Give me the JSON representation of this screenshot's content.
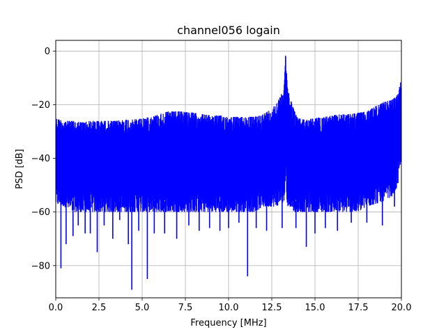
{
  "chart_data": {
    "type": "line",
    "title": "channel056 logain",
    "xlabel": "Frequency [MHz]",
    "ylabel": "PSD [dB]",
    "xlim": [
      0.0,
      20.0
    ],
    "ylim": [
      -92,
      4
    ],
    "xticks": [
      0.0,
      2.5,
      5.0,
      7.5,
      10.0,
      12.5,
      15.0,
      17.5,
      20.0
    ],
    "xtick_labels": [
      "0.0",
      "2.5",
      "5.0",
      "7.5",
      "10.0",
      "12.5",
      "15.0",
      "17.5",
      "20.0"
    ],
    "yticks": [
      0,
      -20,
      -40,
      -60,
      -80
    ],
    "ytick_labels": [
      "0",
      "−20",
      "−40",
      "−60",
      "−80"
    ],
    "grid": true,
    "legend": "none",
    "line_color": "#0000ff",
    "envelope": {
      "x": [
        0.0,
        0.5,
        1.0,
        1.5,
        2.0,
        2.5,
        3.0,
        3.5,
        4.0,
        4.5,
        5.0,
        5.5,
        6.0,
        6.5,
        7.0,
        7.5,
        8.0,
        8.5,
        9.0,
        9.5,
        10.0,
        10.5,
        11.0,
        11.5,
        12.0,
        12.5,
        12.8,
        13.0,
        13.2,
        13.3,
        13.4,
        13.6,
        13.8,
        14.0,
        14.5,
        15.0,
        15.5,
        16.0,
        16.5,
        17.0,
        17.5,
        18.0,
        18.5,
        19.0,
        19.5,
        19.8,
        20.0
      ],
      "upper": [
        -25,
        -26,
        -26,
        -26.5,
        -26,
        -26,
        -26,
        -26,
        -25.5,
        -25.5,
        -25,
        -24.5,
        -23.5,
        -22.5,
        -22.5,
        -22.5,
        -23,
        -23.5,
        -24,
        -24,
        -24.5,
        -24.5,
        -24.5,
        -24.5,
        -23.5,
        -21.5,
        -19,
        -17,
        -13,
        0,
        -13,
        -18,
        -22,
        -25,
        -25.5,
        -25,
        -24.5,
        -24,
        -23.5,
        -23.5,
        -23,
        -22.5,
        -20.5,
        -19,
        -18,
        -16,
        -10
      ],
      "lower": [
        -57,
        -58,
        -60,
        -60,
        -60,
        -60,
        -60,
        -60,
        -60,
        -60,
        -60,
        -60,
        -60,
        -60,
        -60,
        -60,
        -60,
        -60,
        -60,
        -60,
        -60,
        -60,
        -60,
        -60,
        -58,
        -58,
        -58,
        -56,
        -58,
        -48,
        -58,
        -58,
        -60,
        -60,
        -60,
        -60,
        -60,
        -60,
        -60,
        -60,
        -60,
        -58,
        -57,
        -56,
        -54,
        -50,
        -40
      ]
    },
    "dips": [
      {
        "x": 0.3,
        "y": -81
      },
      {
        "x": 0.6,
        "y": -72
      },
      {
        "x": 1.0,
        "y": -69
      },
      {
        "x": 1.3,
        "y": -65
      },
      {
        "x": 1.7,
        "y": -68
      },
      {
        "x": 2.0,
        "y": -68
      },
      {
        "x": 2.4,
        "y": -75
      },
      {
        "x": 2.8,
        "y": -65
      },
      {
        "x": 3.3,
        "y": -70
      },
      {
        "x": 3.7,
        "y": -63
      },
      {
        "x": 4.2,
        "y": -72
      },
      {
        "x": 4.4,
        "y": -89
      },
      {
        "x": 4.8,
        "y": -67
      },
      {
        "x": 5.3,
        "y": -85
      },
      {
        "x": 5.7,
        "y": -68
      },
      {
        "x": 6.3,
        "y": -68
      },
      {
        "x": 7.0,
        "y": -70
      },
      {
        "x": 7.7,
        "y": -65
      },
      {
        "x": 8.3,
        "y": -67
      },
      {
        "x": 8.9,
        "y": -66
      },
      {
        "x": 9.5,
        "y": -67
      },
      {
        "x": 10.0,
        "y": -66
      },
      {
        "x": 10.6,
        "y": -64
      },
      {
        "x": 11.1,
        "y": -84
      },
      {
        "x": 11.6,
        "y": -66
      },
      {
        "x": 12.2,
        "y": -67
      },
      {
        "x": 13.1,
        "y": -66
      },
      {
        "x": 13.9,
        "y": -66
      },
      {
        "x": 14.5,
        "y": -73
      },
      {
        "x": 15.0,
        "y": -68
      },
      {
        "x": 15.6,
        "y": -66
      },
      {
        "x": 16.3,
        "y": -67
      },
      {
        "x": 17.1,
        "y": -64
      },
      {
        "x": 18.0,
        "y": -64
      },
      {
        "x": 18.9,
        "y": -65
      },
      {
        "x": 19.6,
        "y": -58
      }
    ]
  }
}
